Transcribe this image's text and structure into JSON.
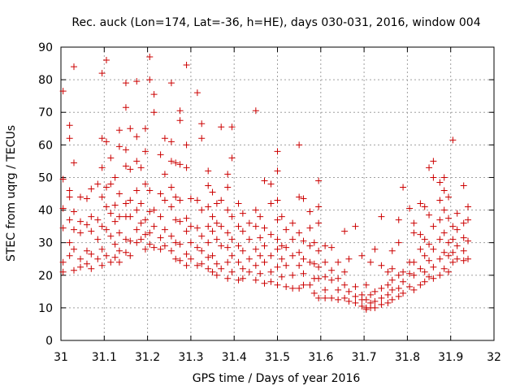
{
  "chart_data": {
    "type": "scatter",
    "title": "Rec. auck (Lon=174, Lat=-36, h=HE), days 030-031, 2016, window 004",
    "xlabel": "GPS time / Days of year 2016",
    "ylabel": "STEC from uqrg / TECUs",
    "xlim": [
      31,
      32
    ],
    "ylim": [
      0,
      90
    ],
    "x_ticks": [
      "31",
      "31.1",
      "31.2",
      "31.3",
      "31.4",
      "31.5",
      "31.6",
      "31.7",
      "31.8",
      "31.9",
      "32"
    ],
    "y_ticks": [
      "0",
      "10",
      "20",
      "30",
      "40",
      "50",
      "60",
      "70",
      "80",
      "90"
    ],
    "grid": true,
    "marker": "+",
    "color": "#cc0000",
    "points": [
      [
        31.005,
        76.5
      ],
      [
        31.005,
        49.5
      ],
      [
        31.005,
        40.5
      ],
      [
        31.005,
        34.5
      ],
      [
        31.005,
        24.0
      ],
      [
        31.005,
        21.0
      ],
      [
        31.02,
        66.0
      ],
      [
        31.02,
        62.0
      ],
      [
        31.02,
        46.0
      ],
      [
        31.02,
        44.0
      ],
      [
        31.02,
        37.0
      ],
      [
        31.02,
        30.0
      ],
      [
        31.02,
        26.0
      ],
      [
        31.03,
        84.0
      ],
      [
        31.03,
        54.5
      ],
      [
        31.03,
        39.5
      ],
      [
        31.03,
        34.0
      ],
      [
        31.03,
        28.0
      ],
      [
        31.03,
        21.5
      ],
      [
        31.045,
        44.0
      ],
      [
        31.045,
        36.5
      ],
      [
        31.045,
        33.0
      ],
      [
        31.045,
        25.0
      ],
      [
        31.045,
        22.5
      ],
      [
        31.06,
        43.5
      ],
      [
        31.06,
        35.5
      ],
      [
        31.06,
        27.5
      ],
      [
        31.06,
        23.5
      ],
      [
        31.07,
        46.5
      ],
      [
        31.07,
        38.0
      ],
      [
        31.07,
        33.5
      ],
      [
        31.07,
        26.5
      ],
      [
        31.07,
        22.0
      ],
      [
        31.085,
        48.0
      ],
      [
        31.085,
        37.0
      ],
      [
        31.085,
        31.0
      ],
      [
        31.085,
        25.0
      ],
      [
        31.095,
        82.0
      ],
      [
        31.095,
        62.0
      ],
      [
        31.095,
        53.0
      ],
      [
        31.095,
        44.0
      ],
      [
        31.095,
        35.0
      ],
      [
        31.095,
        28.0
      ],
      [
        31.095,
        23.0
      ],
      [
        31.105,
        86.0
      ],
      [
        31.105,
        61.0
      ],
      [
        31.105,
        47.0
      ],
      [
        31.105,
        41.0
      ],
      [
        31.105,
        34.0
      ],
      [
        31.105,
        26.0
      ],
      [
        31.115,
        56.0
      ],
      [
        31.115,
        48.0
      ],
      [
        31.115,
        39.0
      ],
      [
        31.115,
        32.0
      ],
      [
        31.115,
        24.0
      ],
      [
        31.125,
        50.0
      ],
      [
        31.125,
        41.5
      ],
      [
        31.125,
        36.5
      ],
      [
        31.125,
        29.5
      ],
      [
        31.125,
        25.5
      ],
      [
        31.135,
        64.5
      ],
      [
        31.135,
        59.5
      ],
      [
        31.135,
        45.0
      ],
      [
        31.135,
        38.0
      ],
      [
        31.135,
        33.0
      ],
      [
        31.135,
        27.5
      ],
      [
        31.135,
        24.0
      ],
      [
        31.15,
        79.0
      ],
      [
        31.15,
        71.5
      ],
      [
        31.15,
        58.5
      ],
      [
        31.15,
        53.5
      ],
      [
        31.15,
        42.0
      ],
      [
        31.15,
        38.0
      ],
      [
        31.15,
        31.0
      ],
      [
        31.15,
        27.0
      ],
      [
        31.16,
        65.0
      ],
      [
        31.16,
        52.5
      ],
      [
        31.16,
        43.0
      ],
      [
        31.16,
        38.0
      ],
      [
        31.16,
        30.5
      ],
      [
        31.16,
        26.0
      ],
      [
        31.175,
        79.5
      ],
      [
        31.175,
        62.5
      ],
      [
        31.175,
        55.0
      ],
      [
        31.175,
        46.0
      ],
      [
        31.175,
        40.0
      ],
      [
        31.175,
        34.0
      ],
      [
        31.175,
        30.0
      ],
      [
        31.185,
        53.0
      ],
      [
        31.185,
        42.0
      ],
      [
        31.185,
        36.0
      ],
      [
        31.185,
        31.0
      ],
      [
        31.195,
        65.0
      ],
      [
        31.195,
        58.0
      ],
      [
        31.195,
        48.0
      ],
      [
        31.195,
        37.0
      ],
      [
        31.195,
        32.5
      ],
      [
        31.195,
        28.0
      ],
      [
        31.205,
        87.0
      ],
      [
        31.205,
        80.0
      ],
      [
        31.205,
        46.0
      ],
      [
        31.205,
        39.5
      ],
      [
        31.205,
        33.0
      ],
      [
        31.205,
        29.5
      ],
      [
        31.215,
        75.5
      ],
      [
        31.215,
        70.0
      ],
      [
        31.215,
        40.0
      ],
      [
        31.215,
        35.0
      ],
      [
        31.215,
        28.5
      ],
      [
        31.23,
        57.0
      ],
      [
        31.23,
        45.0
      ],
      [
        31.23,
        38.0
      ],
      [
        31.23,
        31.5
      ],
      [
        31.23,
        28.0
      ],
      [
        31.24,
        62.0
      ],
      [
        31.24,
        51.0
      ],
      [
        31.24,
        43.0
      ],
      [
        31.24,
        34.0
      ],
      [
        31.24,
        29.0
      ],
      [
        31.255,
        79.0
      ],
      [
        31.255,
        61.0
      ],
      [
        31.255,
        55.0
      ],
      [
        31.255,
        47.0
      ],
      [
        31.255,
        41.0
      ],
      [
        31.255,
        32.0
      ],
      [
        31.255,
        27.5
      ],
      [
        31.265,
        54.5
      ],
      [
        31.265,
        44.0
      ],
      [
        31.265,
        37.0
      ],
      [
        31.265,
        30.0
      ],
      [
        31.265,
        25.0
      ],
      [
        31.275,
        70.5
      ],
      [
        31.275,
        67.5
      ],
      [
        31.275,
        54.0
      ],
      [
        31.275,
        43.0
      ],
      [
        31.275,
        36.5
      ],
      [
        31.275,
        29.5
      ],
      [
        31.275,
        24.5
      ],
      [
        31.29,
        84.5
      ],
      [
        31.29,
        60.0
      ],
      [
        31.29,
        53.0
      ],
      [
        31.29,
        37.5
      ],
      [
        31.29,
        33.5
      ],
      [
        31.29,
        26.5
      ],
      [
        31.29,
        23.0
      ],
      [
        31.3,
        43.5
      ],
      [
        31.3,
        35.0
      ],
      [
        31.3,
        30.0
      ],
      [
        31.3,
        25.0
      ],
      [
        31.315,
        76.0
      ],
      [
        31.315,
        43.0
      ],
      [
        31.315,
        34.5
      ],
      [
        31.315,
        28.5
      ],
      [
        31.315,
        23.0
      ],
      [
        31.325,
        66.5
      ],
      [
        31.325,
        62.0
      ],
      [
        31.325,
        40.0
      ],
      [
        31.325,
        32.0
      ],
      [
        31.325,
        27.5
      ],
      [
        31.325,
        23.5
      ],
      [
        31.34,
        52.0
      ],
      [
        31.34,
        47.5
      ],
      [
        31.34,
        41.0
      ],
      [
        31.34,
        35.0
      ],
      [
        31.34,
        30.0
      ],
      [
        31.34,
        25.5
      ],
      [
        31.34,
        22.0
      ],
      [
        31.35,
        45.5
      ],
      [
        31.35,
        38.0
      ],
      [
        31.35,
        33.5
      ],
      [
        31.35,
        26.0
      ],
      [
        31.35,
        21.0
      ],
      [
        31.36,
        42.0
      ],
      [
        31.36,
        36.0
      ],
      [
        31.36,
        31.0
      ],
      [
        31.36,
        23.5
      ],
      [
        31.36,
        20.0
      ],
      [
        31.37,
        65.5
      ],
      [
        31.37,
        43.0
      ],
      [
        31.37,
        35.0
      ],
      [
        31.37,
        29.0
      ],
      [
        31.37,
        22.0
      ],
      [
        31.385,
        51.0
      ],
      [
        31.385,
        47.0
      ],
      [
        31.385,
        40.0
      ],
      [
        31.385,
        33.0
      ],
      [
        31.385,
        28.5
      ],
      [
        31.385,
        24.0
      ],
      [
        31.385,
        19.0
      ],
      [
        31.395,
        65.5
      ],
      [
        31.395,
        56.0
      ],
      [
        31.395,
        38.0
      ],
      [
        31.395,
        31.0
      ],
      [
        31.395,
        26.0
      ],
      [
        31.395,
        21.0
      ],
      [
        31.41,
        42.0
      ],
      [
        31.41,
        35.0
      ],
      [
        31.41,
        29.0
      ],
      [
        31.41,
        24.0
      ],
      [
        31.41,
        18.5
      ],
      [
        31.42,
        39.0
      ],
      [
        31.42,
        33.5
      ],
      [
        31.42,
        27.5
      ],
      [
        31.42,
        22.0
      ],
      [
        31.42,
        19.0
      ],
      [
        31.435,
        36.0
      ],
      [
        31.435,
        31.0
      ],
      [
        31.435,
        25.0
      ],
      [
        31.435,
        21.0
      ],
      [
        31.45,
        70.5
      ],
      [
        31.45,
        40.0
      ],
      [
        31.45,
        35.0
      ],
      [
        31.45,
        28.0
      ],
      [
        31.45,
        23.0
      ],
      [
        31.45,
        18.5
      ],
      [
        31.46,
        38.0
      ],
      [
        31.46,
        31.5
      ],
      [
        31.46,
        26.0
      ],
      [
        31.46,
        20.5
      ],
      [
        31.47,
        49.0
      ],
      [
        31.47,
        34.5
      ],
      [
        31.47,
        29.0
      ],
      [
        31.47,
        24.0
      ],
      [
        31.47,
        17.5
      ],
      [
        31.485,
        48.0
      ],
      [
        31.485,
        42.0
      ],
      [
        31.485,
        32.5
      ],
      [
        31.485,
        26.0
      ],
      [
        31.485,
        21.0
      ],
      [
        31.485,
        18.0
      ],
      [
        31.5,
        58.0
      ],
      [
        31.5,
        52.0
      ],
      [
        31.5,
        43.0
      ],
      [
        31.5,
        37.0
      ],
      [
        31.5,
        31.0
      ],
      [
        31.5,
        28.0
      ],
      [
        31.5,
        22.5
      ],
      [
        31.5,
        17.0
      ],
      [
        31.51,
        38.0
      ],
      [
        31.51,
        29.0
      ],
      [
        31.51,
        25.0
      ],
      [
        31.51,
        19.5
      ],
      [
        31.52,
        34.0
      ],
      [
        31.52,
        28.5
      ],
      [
        31.52,
        23.0
      ],
      [
        31.52,
        16.5
      ],
      [
        31.535,
        36.0
      ],
      [
        31.535,
        31.0
      ],
      [
        31.535,
        26.0
      ],
      [
        31.535,
        20.0
      ],
      [
        31.535,
        16.0
      ],
      [
        31.55,
        60.0
      ],
      [
        31.55,
        44.0
      ],
      [
        31.55,
        33.0
      ],
      [
        31.55,
        27.0
      ],
      [
        31.55,
        23.0
      ],
      [
        31.55,
        16.0
      ],
      [
        31.56,
        43.5
      ],
      [
        31.56,
        30.5
      ],
      [
        31.56,
        25.0
      ],
      [
        31.56,
        20.5
      ],
      [
        31.56,
        17.0
      ],
      [
        31.575,
        39.5
      ],
      [
        31.575,
        34.5
      ],
      [
        31.575,
        29.0
      ],
      [
        31.575,
        24.0
      ],
      [
        31.575,
        17.0
      ],
      [
        31.585,
        30.0
      ],
      [
        31.585,
        23.5
      ],
      [
        31.585,
        19.0
      ],
      [
        31.585,
        14.5
      ],
      [
        31.595,
        49.0
      ],
      [
        31.595,
        41.0
      ],
      [
        31.595,
        36.0
      ],
      [
        31.595,
        27.5
      ],
      [
        31.595,
        22.5
      ],
      [
        31.595,
        19.0
      ],
      [
        31.595,
        13.0
      ],
      [
        31.61,
        29.0
      ],
      [
        31.61,
        24.0
      ],
      [
        31.61,
        19.5
      ],
      [
        31.61,
        15.5
      ],
      [
        31.61,
        13.0
      ],
      [
        31.625,
        28.5
      ],
      [
        31.625,
        21.5
      ],
      [
        31.625,
        18.5
      ],
      [
        31.625,
        13.0
      ],
      [
        31.64,
        24.0
      ],
      [
        31.64,
        19.0
      ],
      [
        31.64,
        15.5
      ],
      [
        31.64,
        12.5
      ],
      [
        31.655,
        33.5
      ],
      [
        31.655,
        21.0
      ],
      [
        31.655,
        17.0
      ],
      [
        31.655,
        13.0
      ],
      [
        31.665,
        25.0
      ],
      [
        31.665,
        15.0
      ],
      [
        31.665,
        12.0
      ],
      [
        31.68,
        35.0
      ],
      [
        31.68,
        16.5
      ],
      [
        31.68,
        13.5
      ],
      [
        31.68,
        11.5
      ],
      [
        31.695,
        26.0
      ],
      [
        31.695,
        14.0
      ],
      [
        31.695,
        12.5
      ],
      [
        31.695,
        10.5
      ],
      [
        31.705,
        17.0
      ],
      [
        31.705,
        12.5
      ],
      [
        31.705,
        10.0
      ],
      [
        31.705,
        9.5
      ],
      [
        31.715,
        24.0
      ],
      [
        31.715,
        14.0
      ],
      [
        31.715,
        11.5
      ],
      [
        31.715,
        10.0
      ],
      [
        31.725,
        28.0
      ],
      [
        31.725,
        15.0
      ],
      [
        31.725,
        12.0
      ],
      [
        31.725,
        10.0
      ],
      [
        31.74,
        38.0
      ],
      [
        31.74,
        23.0
      ],
      [
        31.74,
        16.0
      ],
      [
        31.74,
        13.0
      ],
      [
        31.74,
        11.0
      ],
      [
        31.755,
        21.0
      ],
      [
        31.755,
        17.0
      ],
      [
        31.755,
        14.0
      ],
      [
        31.755,
        11.5
      ],
      [
        31.765,
        27.5
      ],
      [
        31.765,
        22.0
      ],
      [
        31.765,
        18.5
      ],
      [
        31.765,
        15.5
      ],
      [
        31.765,
        12.5
      ],
      [
        31.78,
        37.0
      ],
      [
        31.78,
        30.0
      ],
      [
        31.78,
        20.0
      ],
      [
        31.78,
        16.0
      ],
      [
        31.78,
        13.5
      ],
      [
        31.79,
        47.0
      ],
      [
        31.79,
        21.0
      ],
      [
        31.79,
        18.0
      ],
      [
        31.79,
        14.5
      ],
      [
        31.805,
        40.5
      ],
      [
        31.805,
        24.0
      ],
      [
        31.805,
        20.5
      ],
      [
        31.805,
        16.5
      ],
      [
        31.815,
        36.0
      ],
      [
        31.815,
        33.0
      ],
      [
        31.815,
        24.0
      ],
      [
        31.815,
        20.0
      ],
      [
        31.815,
        15.5
      ],
      [
        31.83,
        42.0
      ],
      [
        31.83,
        32.5
      ],
      [
        31.83,
        28.0
      ],
      [
        31.83,
        22.0
      ],
      [
        31.83,
        17.0
      ],
      [
        31.84,
        41.0
      ],
      [
        31.84,
        31.0
      ],
      [
        31.84,
        26.0
      ],
      [
        31.84,
        21.0
      ],
      [
        31.84,
        18.0
      ],
      [
        31.85,
        53.0
      ],
      [
        31.85,
        38.5
      ],
      [
        31.85,
        29.5
      ],
      [
        31.85,
        24.5
      ],
      [
        31.85,
        19.5
      ],
      [
        31.86,
        55.0
      ],
      [
        31.86,
        50.0
      ],
      [
        31.86,
        35.0
      ],
      [
        31.86,
        28.0
      ],
      [
        31.86,
        22.5
      ],
      [
        31.86,
        19.0
      ],
      [
        31.875,
        48.5
      ],
      [
        31.875,
        43.0
      ],
      [
        31.875,
        37.0
      ],
      [
        31.875,
        31.0
      ],
      [
        31.875,
        25.0
      ],
      [
        31.875,
        20.0
      ],
      [
        31.885,
        50.0
      ],
      [
        31.885,
        46.0
      ],
      [
        31.885,
        40.0
      ],
      [
        31.885,
        33.0
      ],
      [
        31.885,
        27.0
      ],
      [
        31.885,
        22.0
      ],
      [
        31.895,
        44.0
      ],
      [
        31.895,
        37.5
      ],
      [
        31.895,
        30.0
      ],
      [
        31.895,
        26.0
      ],
      [
        31.895,
        21.0
      ],
      [
        31.905,
        61.5
      ],
      [
        31.905,
        35.0
      ],
      [
        31.905,
        31.0
      ],
      [
        31.905,
        27.0
      ],
      [
        31.905,
        24.0
      ],
      [
        31.915,
        39.0
      ],
      [
        31.915,
        34.0
      ],
      [
        31.915,
        29.0
      ],
      [
        31.915,
        25.0
      ],
      [
        31.93,
        47.5
      ],
      [
        31.93,
        36.0
      ],
      [
        31.93,
        31.5
      ],
      [
        31.93,
        27.5
      ],
      [
        31.93,
        24.5
      ],
      [
        31.94,
        41.0
      ],
      [
        31.94,
        37.0
      ],
      [
        31.94,
        30.5
      ],
      [
        31.94,
        25.0
      ]
    ]
  }
}
